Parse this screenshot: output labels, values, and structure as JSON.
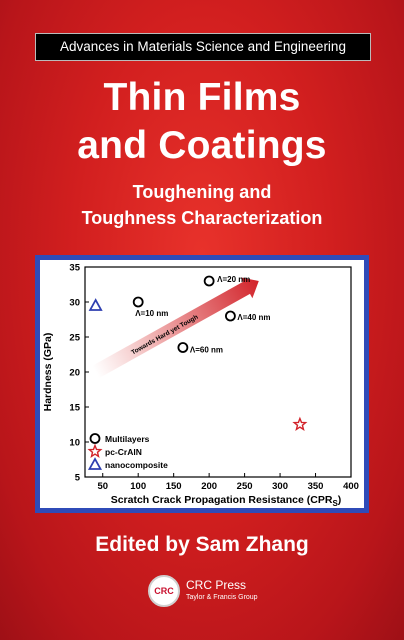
{
  "cover": {
    "series": "Advances in Materials Science and Engineering",
    "title_line1": "Thin Films",
    "title_line2": "and Coatings",
    "subtitle_line1": "Toughening and",
    "subtitle_line2": "Toughness Characterization",
    "editor": "Edited by Sam Zhang",
    "publisher_logo_text": "CRC",
    "publisher_name": "CRC Press",
    "publisher_sub": "Taylor & Francis Group"
  },
  "chart_data": {
    "type": "scatter",
    "xlabel": "Scratch Crack Propagation Resistance (CPR",
    "xlabel_sub": "S",
    "xlabel_end": ")",
    "ylabel": "Hardness (GPa)",
    "xlim": [
      25,
      400
    ],
    "ylim": [
      5,
      35
    ],
    "xticks": [
      50,
      100,
      150,
      200,
      250,
      300,
      350,
      400
    ],
    "yticks": [
      5,
      10,
      15,
      20,
      25,
      30,
      35
    ],
    "arrow_label": "Towards Hard yet Tough",
    "arrow_from": [
      40,
      20
    ],
    "arrow_to": [
      270,
      33
    ],
    "series": [
      {
        "name": "Multilayers",
        "marker": "circle",
        "color": "#000000",
        "points": [
          {
            "x": 100,
            "y": 30,
            "label": "Λ=10 nm"
          },
          {
            "x": 200,
            "y": 33,
            "label": "Λ=20 nm"
          },
          {
            "x": 230,
            "y": 28,
            "label": "Λ=40 nm"
          },
          {
            "x": 163,
            "y": 23.5,
            "label": "Λ=60 nm"
          }
        ]
      },
      {
        "name": "pc-CrAlN",
        "marker": "star",
        "color": "#d2232a",
        "points": [
          {
            "x": 328,
            "y": 12.5,
            "label": ""
          }
        ]
      },
      {
        "name": "nanocomposite",
        "marker": "triangle",
        "color": "#2e3fb0",
        "points": [
          {
            "x": 40,
            "y": 29.5,
            "label": ""
          }
        ]
      }
    ],
    "legend_position": "bottom-left",
    "grid": false
  }
}
